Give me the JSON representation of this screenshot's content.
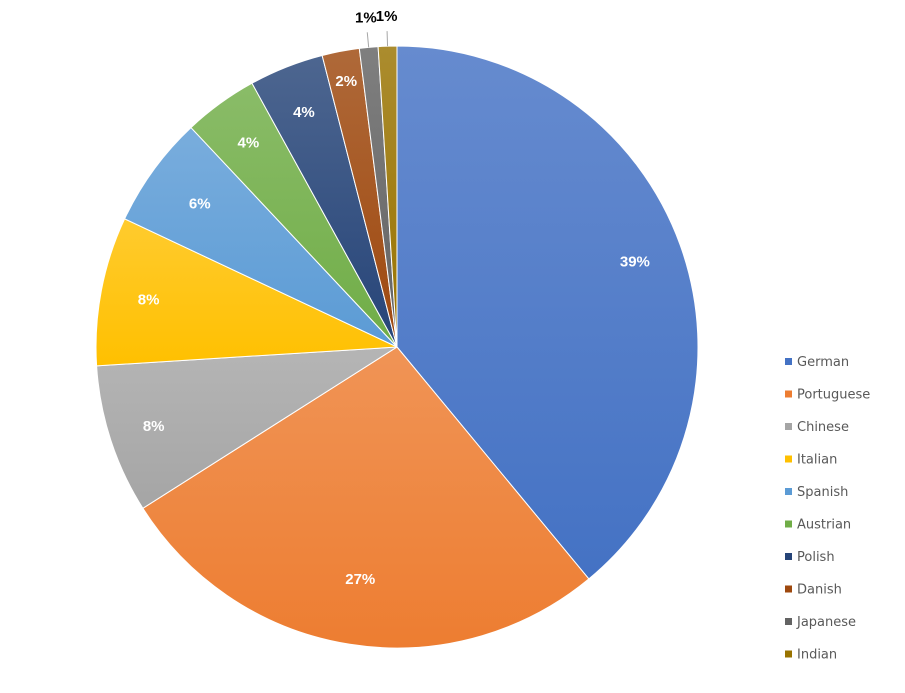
{
  "chart_data": {
    "type": "pie",
    "title": "",
    "legend_position": "right",
    "data_labels": "percent",
    "start_angle_deg": 0,
    "direction": "clockwise",
    "slices": [
      {
        "name": "German",
        "value": 39,
        "label": "39%",
        "color": "#4472C4"
      },
      {
        "name": "Portuguese",
        "value": 27,
        "label": "27%",
        "color": "#ED7D31"
      },
      {
        "name": "Chinese",
        "value": 8,
        "label": "8%",
        "color": "#A5A5A5"
      },
      {
        "name": "Italian",
        "value": 8,
        "label": "8%",
        "color": "#FFC000"
      },
      {
        "name": "Spanish",
        "value": 6,
        "label": "6%",
        "color": "#5B9BD5"
      },
      {
        "name": "Austrian",
        "value": 4,
        "label": "4%",
        "color": "#70AD47"
      },
      {
        "name": "Polish",
        "value": 4,
        "label": "4%",
        "color": "#264478"
      },
      {
        "name": "Danish",
        "value": 2,
        "label": "2%",
        "color": "#9E480E"
      },
      {
        "name": "Japanese",
        "value": 1,
        "label": "1%",
        "color": "#636363"
      },
      {
        "name": "Indian",
        "value": 1,
        "label": "1%",
        "color": "#997300"
      }
    ]
  }
}
